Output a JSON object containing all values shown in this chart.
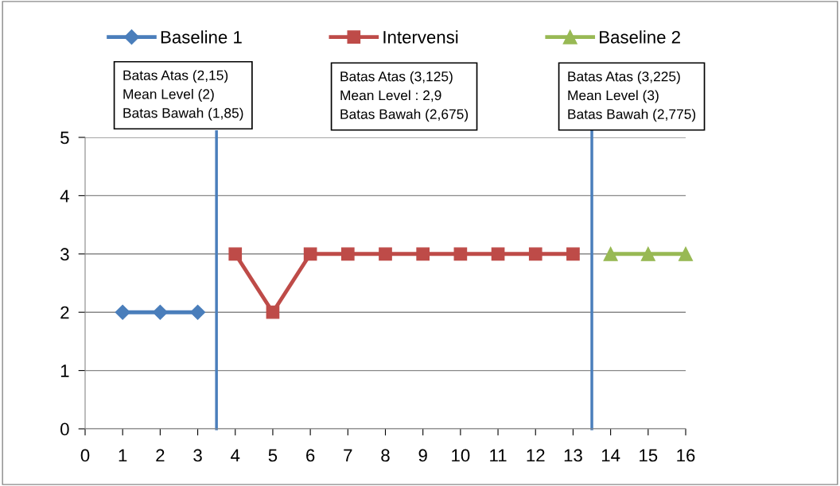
{
  "chart_data": {
    "type": "line",
    "xlim": [
      0,
      16
    ],
    "xticks": [
      0,
      1,
      2,
      3,
      4,
      5,
      6,
      7,
      8,
      9,
      10,
      11,
      12,
      13,
      14,
      15,
      16
    ],
    "ylim": [
      0,
      5
    ],
    "yticks": [
      0,
      1,
      2,
      3,
      4,
      5
    ],
    "grid": "y",
    "legend": "top",
    "series": [
      {
        "name": "Baseline 1",
        "color": "#4a7ebb",
        "marker": "diamond",
        "x": [
          1,
          2,
          3
        ],
        "values": [
          2,
          2,
          2
        ]
      },
      {
        "name": "Intervensi",
        "color": "#be4b48",
        "marker": "square",
        "x": [
          4,
          5,
          6,
          7,
          8,
          9,
          10,
          11,
          12,
          13
        ],
        "values": [
          3,
          2,
          3,
          3,
          3,
          3,
          3,
          3,
          3,
          3
        ]
      },
      {
        "name": "Baseline 2",
        "color": "#98b954",
        "marker": "triangle",
        "x": [
          14,
          15,
          16
        ],
        "values": [
          3,
          3,
          3
        ]
      }
    ],
    "ref_lines": [
      {
        "axis": "x",
        "value": 3.5,
        "color": "#4a7ebb"
      },
      {
        "axis": "x",
        "value": 13.5,
        "color": "#4a7ebb"
      }
    ],
    "annotations": [
      "Batas Atas (2,15)\nMean Level (2)\nBatas Bawah (1,85)",
      "Batas Atas (3,125)\nMean Level : 2,9\nBatas Bawah (2,675)",
      "Batas Atas (3,225)\nMean Level (3)\nBatas Bawah (2,775)"
    ]
  }
}
